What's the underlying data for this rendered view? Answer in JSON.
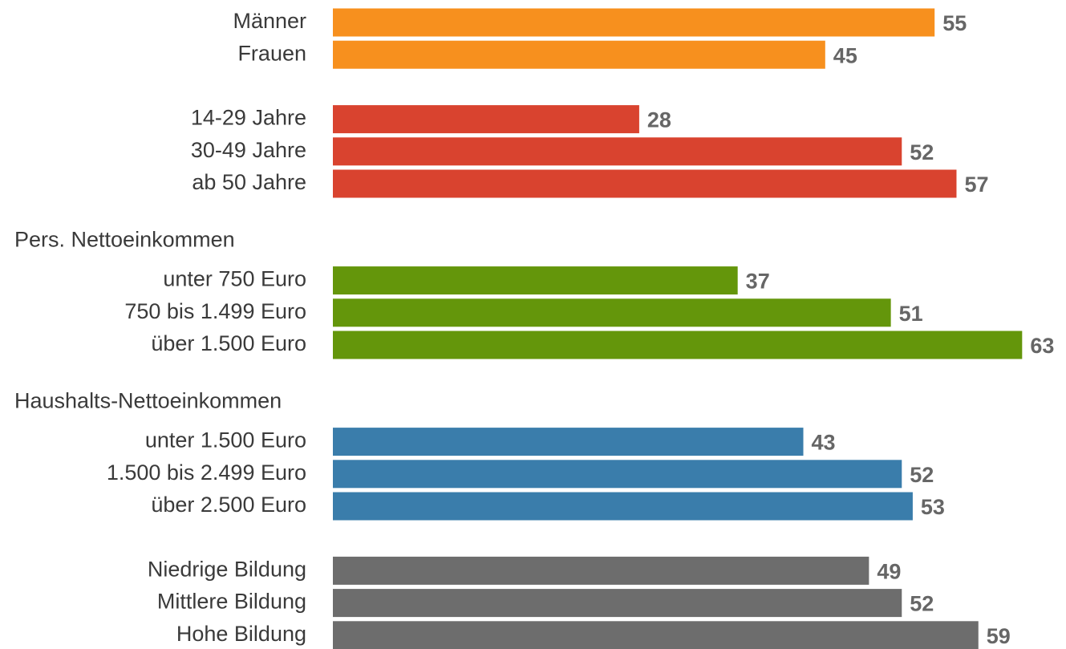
{
  "chart_data": {
    "type": "bar",
    "orientation": "horizontal",
    "groups": [
      {
        "color": "#f7901e",
        "categories": [
          "Männer",
          "Frauen"
        ],
        "values": [
          55,
          45
        ]
      },
      {
        "color": "#d9432f",
        "categories": [
          "14-29 Jahre",
          "30-49 Jahre",
          "ab 50 Jahre"
        ],
        "values": [
          28,
          52,
          57
        ]
      },
      {
        "name": "Pers. Nettoeinkommen",
        "color": "#64960b",
        "categories": [
          "unter 750 Euro",
          "750 bis 1.499 Euro",
          "über 1.500 Euro"
        ],
        "values": [
          37,
          51,
          63
        ]
      },
      {
        "name": "Haushalts-Nettoeinkommen",
        "color": "#3a7dab",
        "categories": [
          "unter 1.500 Euro",
          "1.500 bis 2.499 Euro",
          "über 2.500 Euro"
        ],
        "values": [
          43,
          52,
          53
        ]
      },
      {
        "color": "#6d6d6d",
        "categories": [
          "Niedrige Bildung",
          "Mittlere Bildung",
          "Hohe Bildung"
        ],
        "values": [
          49,
          52,
          59
        ]
      }
    ]
  }
}
